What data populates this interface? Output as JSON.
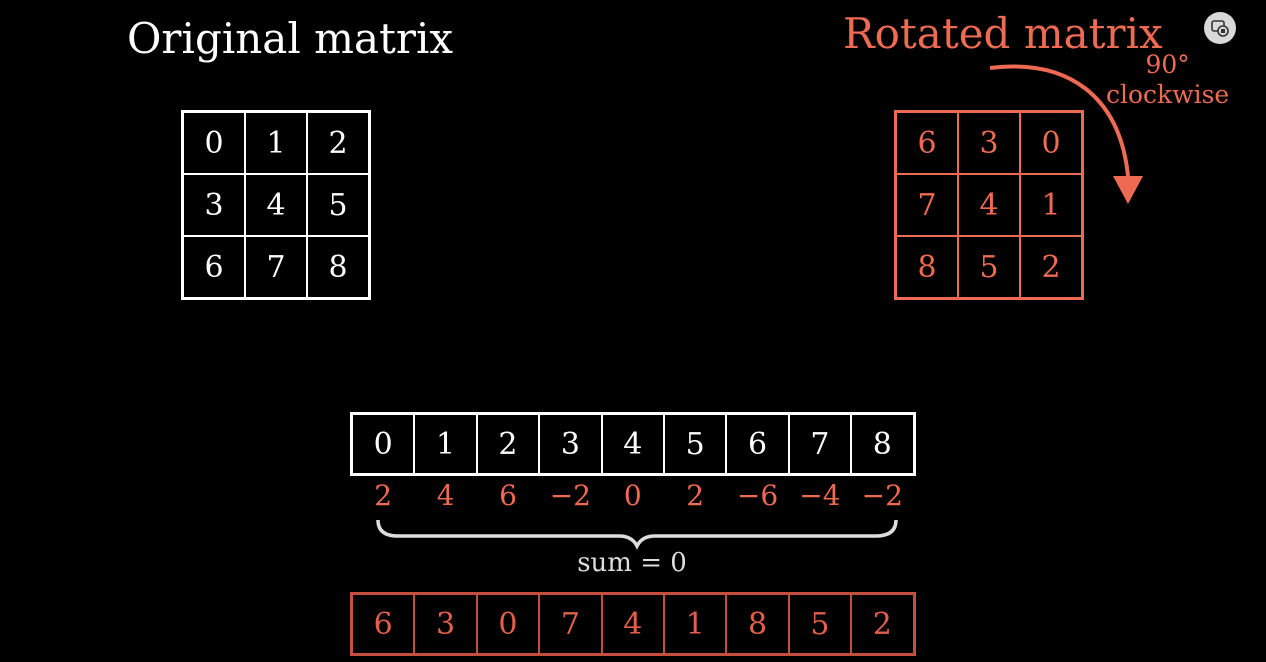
{
  "colors": {
    "background": "#000000",
    "primary": "#ffffff",
    "accent": "#ee6a52"
  },
  "original": {
    "title": "Original matrix",
    "cells": [
      "0",
      "1",
      "2",
      "3",
      "4",
      "5",
      "6",
      "7",
      "8"
    ]
  },
  "rotated": {
    "title": "Rotated matrix",
    "rotation_label_line1": "90°",
    "rotation_label_line2": "clockwise",
    "cells": [
      "6",
      "3",
      "0",
      "7",
      "4",
      "1",
      "8",
      "5",
      "2"
    ]
  },
  "flattened_original": [
    "0",
    "1",
    "2",
    "3",
    "4",
    "5",
    "6",
    "7",
    "8"
  ],
  "differences": [
    "2",
    "4",
    "6",
    "−2",
    "0",
    "2",
    "−6",
    "−4",
    "−2"
  ],
  "sum_label": "sum = 0",
  "flattened_rotated": [
    "6",
    "3",
    "0",
    "7",
    "4",
    "1",
    "8",
    "5",
    "2"
  ],
  "corner_button": {
    "icon": "cast-to-screen-icon"
  }
}
